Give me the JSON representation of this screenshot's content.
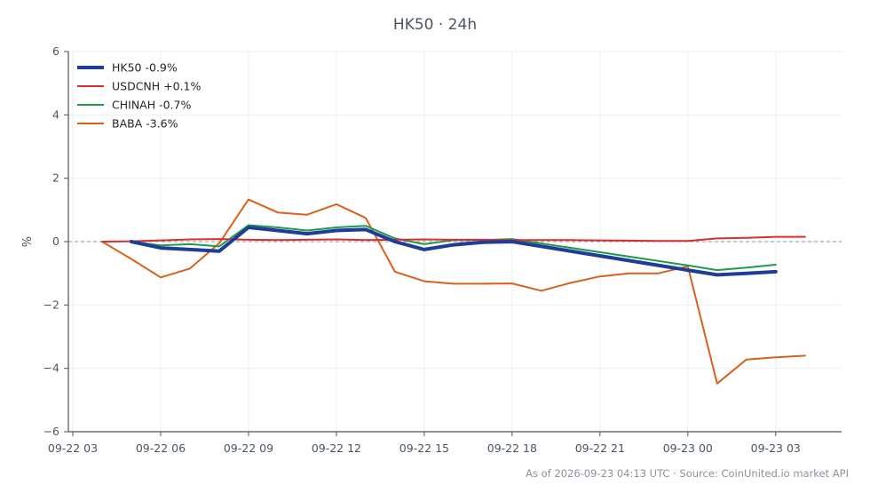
{
  "chart_data": {
    "type": "line",
    "title": "HK50 · 24h",
    "ylabel": "%",
    "xlabel": "",
    "ylim": [
      -6,
      6
    ],
    "yticks": [
      -6,
      -4,
      -2,
      0,
      2,
      4,
      6
    ],
    "ytick_labels": [
      "−6",
      "−4",
      "−2",
      "0",
      "2",
      "4",
      "6"
    ],
    "x_unit": "hour",
    "xlim": [
      "09-22 03:00",
      "09-23 05:15"
    ],
    "xticks": [
      "09-22 03:00",
      "09-22 06:00",
      "09-22 09:00",
      "09-22 12:00",
      "09-22 15:00",
      "09-22 18:00",
      "09-22 21:00",
      "09-23 00:00",
      "09-23 03:00"
    ],
    "xtick_labels": [
      "09-22 03",
      "09-22 06",
      "09-22 09",
      "09-22 12",
      "09-22 15",
      "09-22 18",
      "09-22 21",
      "09-23 00",
      "09-23 03"
    ],
    "grid": true,
    "zero_line": true,
    "legend_position": "top-left",
    "series": [
      {
        "name": "HK50 -0.9%",
        "color": "#1f3c99",
        "x": [
          "09-22 05:00",
          "09-22 06:00",
          "09-22 07:00",
          "09-22 08:00",
          "09-22 09:00",
          "09-22 10:00",
          "09-22 11:00",
          "09-22 12:00",
          "09-22 13:00",
          "09-22 14:00",
          "09-22 15:00",
          "09-22 16:00",
          "09-22 17:00",
          "09-22 18:00",
          "09-23 00:00",
          "09-23 01:00",
          "09-23 02:00",
          "09-23 03:00"
        ],
        "y": [
          0.0,
          -0.2,
          -0.25,
          -0.3,
          0.45,
          0.35,
          0.25,
          0.35,
          0.38,
          0.0,
          -0.25,
          -0.1,
          -0.02,
          0.0,
          -0.9,
          -1.05,
          -1.0,
          -0.95
        ]
      },
      {
        "name": "USDCNH +0.1%",
        "color": "#d62f2f",
        "x": [
          "09-22 04:00",
          "09-22 05:00",
          "09-22 06:00",
          "09-22 07:00",
          "09-22 08:00",
          "09-22 09:00",
          "09-22 10:00",
          "09-22 11:00",
          "09-22 12:00",
          "09-22 13:00",
          "09-22 14:00",
          "09-22 15:00",
          "09-22 16:00",
          "09-22 17:00",
          "09-22 18:00",
          "09-22 19:00",
          "09-22 20:00",
          "09-22 21:00",
          "09-22 22:00",
          "09-22 23:00",
          "09-23 00:00",
          "09-23 01:00",
          "09-23 02:00",
          "09-23 03:00",
          "09-23 04:00"
        ],
        "y": [
          0.0,
          0.01,
          0.04,
          0.07,
          0.08,
          0.06,
          0.05,
          0.06,
          0.07,
          0.05,
          0.06,
          0.07,
          0.06,
          0.06,
          0.05,
          0.05,
          0.05,
          0.04,
          0.03,
          0.02,
          0.02,
          0.1,
          0.12,
          0.15,
          0.15
        ]
      },
      {
        "name": "CHINAH -0.7%",
        "color": "#1e9b49",
        "x": [
          "09-22 05:00",
          "09-22 06:00",
          "09-22 07:00",
          "09-22 08:00",
          "09-22 09:00",
          "09-22 10:00",
          "09-22 11:00",
          "09-22 12:00",
          "09-22 13:00",
          "09-22 14:00",
          "09-22 15:00",
          "09-22 16:00",
          "09-22 17:00",
          "09-22 18:00",
          "09-23 00:00",
          "09-23 01:00",
          "09-23 02:00",
          "09-23 03:00"
        ],
        "y": [
          0.0,
          -0.12,
          -0.08,
          -0.15,
          0.52,
          0.45,
          0.35,
          0.45,
          0.5,
          0.1,
          -0.08,
          0.05,
          0.05,
          0.08,
          -0.75,
          -0.9,
          -0.82,
          -0.73
        ]
      },
      {
        "name": "BABA -3.6%",
        "color": "#d9611c",
        "x": [
          "09-22 04:00",
          "09-22 05:00",
          "09-22 06:00",
          "09-22 07:00",
          "09-22 08:00",
          "09-22 09:00",
          "09-22 10:00",
          "09-22 11:00",
          "09-22 12:00",
          "09-22 13:00",
          "09-22 14:00",
          "09-22 15:00",
          "09-22 16:00",
          "09-22 17:00",
          "09-22 18:00",
          "09-22 19:00",
          "09-22 20:00",
          "09-22 21:00",
          "09-22 22:00",
          "09-22 23:00",
          "09-23 00:00",
          "09-23 01:00",
          "09-23 02:00",
          "09-23 03:00",
          "09-23 04:00"
        ],
        "y": [
          0.0,
          -0.55,
          -1.13,
          -0.85,
          -0.05,
          1.33,
          0.92,
          0.85,
          1.18,
          0.75,
          -0.95,
          -1.25,
          -1.33,
          -1.33,
          -1.32,
          -1.55,
          -1.3,
          -1.1,
          -1.0,
          -1.0,
          -0.78,
          -4.48,
          -3.72,
          -3.65,
          -3.6
        ]
      }
    ]
  },
  "footer": {
    "note": "As of 2026-09-23 04:13 UTC · Source: CoinUnited.io market API"
  }
}
